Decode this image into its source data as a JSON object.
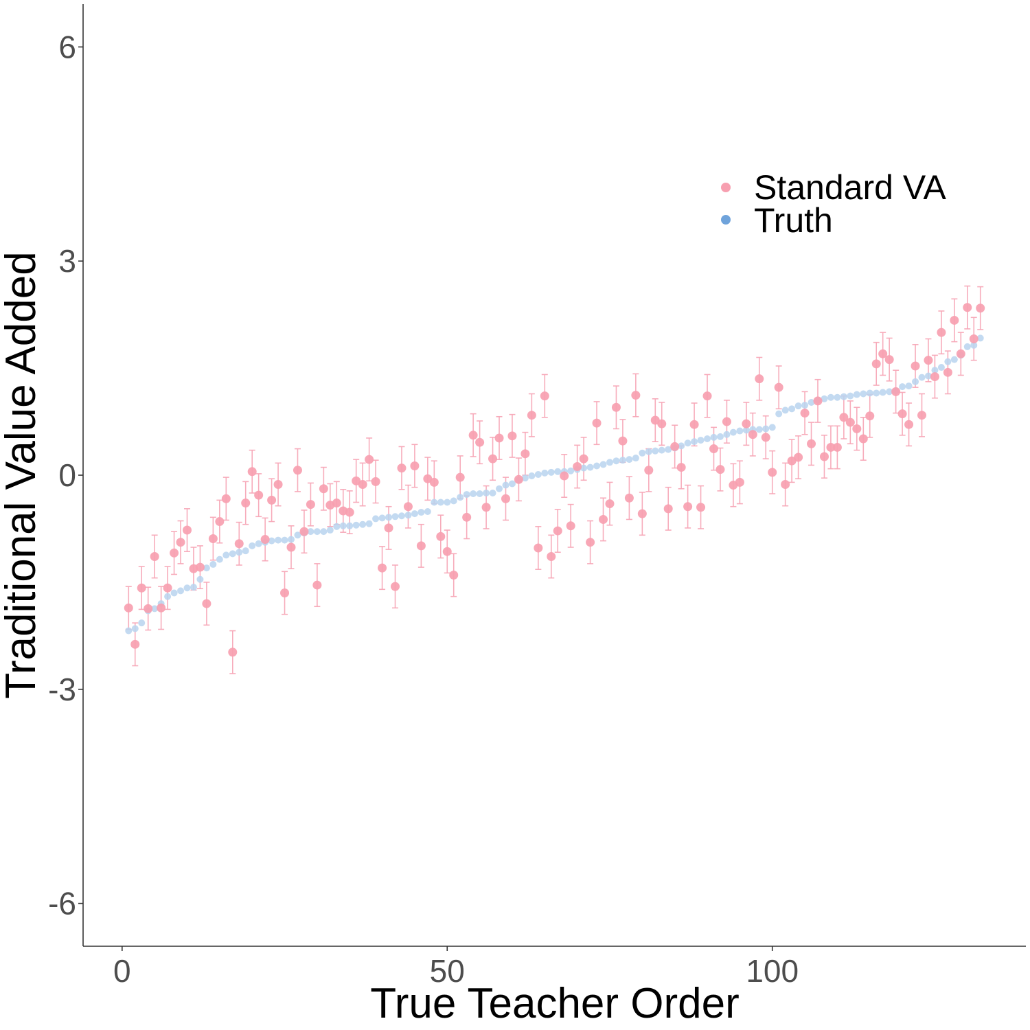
{
  "chart_data": {
    "type": "scatter",
    "title": "",
    "xlabel": "True Teacher Order",
    "ylabel": "Traditional Value Added",
    "xlim": [
      -6,
      139
    ],
    "ylim": [
      -6.6,
      6.6
    ],
    "xticks": [
      0,
      50,
      100
    ],
    "yticks": [
      -6,
      -3,
      0,
      3,
      6
    ],
    "xtick_labels": [
      "0",
      "50",
      "100"
    ],
    "ytick_labels": [
      "-6",
      "-3",
      "0",
      "3",
      "6"
    ],
    "grid": false,
    "legend_position": "top-right",
    "error_half_width": 0.3,
    "series": [
      {
        "name": "Standard VA",
        "color": "#f79fb0",
        "has_error_bars": true,
        "x": [
          1,
          2,
          3,
          4,
          5,
          6,
          7,
          8,
          9,
          10,
          11,
          12,
          13,
          14,
          15,
          16,
          17,
          18,
          19,
          20,
          21,
          22,
          23,
          24,
          25,
          26,
          27,
          28,
          29,
          30,
          31,
          32,
          33,
          34,
          35,
          36,
          37,
          38,
          39,
          40,
          41,
          42,
          43,
          44,
          45,
          46,
          47,
          48,
          49,
          50,
          51,
          52,
          53,
          54,
          55,
          56,
          57,
          58,
          59,
          60,
          61,
          62,
          63,
          64,
          65,
          66,
          67,
          68,
          69,
          70,
          71,
          72,
          73,
          74,
          75,
          76,
          77,
          78,
          79,
          80,
          81,
          82,
          83,
          84,
          85,
          86,
          87,
          88,
          89,
          90,
          91,
          92,
          93,
          94,
          95,
          96,
          97,
          98,
          99,
          100,
          101,
          102,
          103,
          104,
          105,
          106,
          107,
          108,
          109,
          110,
          111,
          112,
          113,
          114,
          115,
          116,
          117,
          118,
          119,
          120,
          121,
          122,
          123,
          124,
          125,
          126,
          127,
          128,
          129,
          130,
          131,
          132
        ],
        "values": [
          -1.86,
          -2.37,
          -1.58,
          -1.87,
          -1.14,
          -1.86,
          -1.58,
          -1.09,
          -0.94,
          -0.77,
          -1.31,
          -1.29,
          -1.8,
          -0.89,
          -0.65,
          -0.33,
          -2.48,
          -0.96,
          -0.39,
          0.05,
          -0.28,
          -0.9,
          -0.35,
          -0.13,
          -1.65,
          -1.01,
          0.07,
          -0.79,
          -0.41,
          -1.54,
          -0.19,
          -0.42,
          -0.39,
          -0.5,
          -0.52,
          -0.08,
          -0.13,
          0.22,
          -0.09,
          -1.3,
          -0.74,
          -1.56,
          0.1,
          -0.44,
          0.13,
          -0.99,
          -0.05,
          -0.1,
          -0.86,
          -1.07,
          -1.4,
          -0.03,
          -0.59,
          0.56,
          0.46,
          -0.45,
          0.23,
          0.52,
          -0.33,
          0.55,
          -0.06,
          0.3,
          0.84,
          -1.02,
          1.11,
          -1.14,
          -0.78,
          -0.01,
          -0.71,
          0.12,
          0.23,
          -0.94,
          0.73,
          -0.62,
          -0.4,
          0.95,
          0.48,
          -0.32,
          1.12,
          -0.54,
          0.07,
          0.77,
          0.72,
          -0.47,
          0.4,
          0.11,
          -0.44,
          0.71,
          -0.45,
          1.11,
          0.37,
          0.08,
          0.75,
          -0.14,
          -0.1,
          0.72,
          0.57,
          1.35,
          0.53,
          0.04,
          1.23,
          -0.13,
          0.2,
          0.25,
          0.87,
          0.44,
          1.04,
          0.26,
          0.39,
          0.39,
          0.81,
          0.74,
          0.65,
          0.51,
          0.83,
          1.56,
          1.7,
          1.62,
          1.17,
          0.86,
          0.71,
          1.53,
          0.84,
          1.61,
          1.38,
          2.0,
          1.44,
          2.17,
          1.7,
          2.35,
          1.91,
          2.34
        ]
      },
      {
        "name": "Truth",
        "color": "#b9d3ee",
        "legend_color": "#6fa3db",
        "has_error_bars": false,
        "x": [
          1,
          2,
          3,
          4,
          5,
          6,
          7,
          8,
          9,
          10,
          11,
          12,
          13,
          14,
          15,
          16,
          17,
          18,
          19,
          20,
          21,
          22,
          23,
          24,
          25,
          26,
          27,
          28,
          29,
          30,
          31,
          32,
          33,
          34,
          35,
          36,
          37,
          38,
          39,
          40,
          41,
          42,
          43,
          44,
          45,
          46,
          47,
          48,
          49,
          50,
          51,
          52,
          53,
          54,
          55,
          56,
          57,
          58,
          59,
          60,
          61,
          62,
          63,
          64,
          65,
          66,
          67,
          68,
          69,
          70,
          71,
          72,
          73,
          74,
          75,
          76,
          77,
          78,
          79,
          80,
          81,
          82,
          83,
          84,
          85,
          86,
          87,
          88,
          89,
          90,
          91,
          92,
          93,
          94,
          95,
          96,
          97,
          98,
          99,
          100,
          101,
          102,
          103,
          104,
          105,
          106,
          107,
          108,
          109,
          110,
          111,
          112,
          113,
          114,
          115,
          116,
          117,
          118,
          119,
          120,
          121,
          122,
          123,
          124,
          125,
          126,
          127,
          128,
          129,
          130,
          131,
          132
        ],
        "values": [
          -2.18,
          -2.15,
          -2.07,
          -1.9,
          -1.87,
          -1.8,
          -1.7,
          -1.65,
          -1.62,
          -1.58,
          -1.57,
          -1.46,
          -1.3,
          -1.25,
          -1.18,
          -1.12,
          -1.1,
          -1.08,
          -1.06,
          -0.99,
          -0.96,
          -0.94,
          -0.92,
          -0.91,
          -0.91,
          -0.9,
          -0.84,
          -0.81,
          -0.79,
          -0.79,
          -0.79,
          -0.77,
          -0.72,
          -0.71,
          -0.71,
          -0.7,
          -0.69,
          -0.68,
          -0.61,
          -0.6,
          -0.59,
          -0.58,
          -0.57,
          -0.56,
          -0.54,
          -0.52,
          -0.51,
          -0.38,
          -0.38,
          -0.38,
          -0.36,
          -0.31,
          -0.27,
          -0.26,
          -0.26,
          -0.25,
          -0.25,
          -0.19,
          -0.14,
          -0.12,
          -0.07,
          -0.04,
          -0.01,
          0.01,
          0.03,
          0.04,
          0.05,
          0.05,
          0.06,
          0.08,
          0.1,
          0.11,
          0.13,
          0.15,
          0.18,
          0.2,
          0.21,
          0.22,
          0.24,
          0.31,
          0.33,
          0.34,
          0.35,
          0.36,
          0.38,
          0.41,
          0.45,
          0.47,
          0.49,
          0.51,
          0.53,
          0.54,
          0.57,
          0.6,
          0.62,
          0.63,
          0.64,
          0.64,
          0.65,
          0.67,
          0.86,
          0.91,
          0.93,
          0.97,
          0.98,
          1.02,
          1.05,
          1.07,
          1.09,
          1.09,
          1.1,
          1.11,
          1.13,
          1.14,
          1.15,
          1.15,
          1.16,
          1.17,
          1.18,
          1.24,
          1.25,
          1.31,
          1.37,
          1.39,
          1.47,
          1.51,
          1.59,
          1.62,
          1.68,
          1.8,
          1.82,
          1.92
        ]
      }
    ]
  }
}
